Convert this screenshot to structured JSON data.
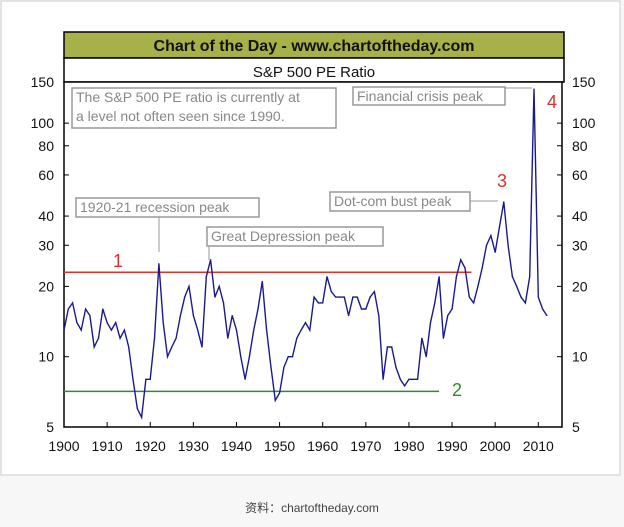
{
  "chart_data": {
    "type": "line",
    "banner": "Chart of the Day - www.chartoftheday.com",
    "title": "S&P 500 PE Ratio",
    "xlabel": "",
    "ylabel": "",
    "yscale": "log",
    "ylim": [
      5,
      150
    ],
    "xlim": [
      1900,
      2015.5
    ],
    "y_ticks": [
      5,
      10,
      20,
      30,
      40,
      60,
      80,
      100,
      150
    ],
    "x_ticks": [
      1900,
      1910,
      1920,
      1930,
      1940,
      1950,
      1960,
      1970,
      1980,
      1990,
      2000,
      2010
    ],
    "grid": false,
    "series": [
      {
        "name": "S&P 500 PE Ratio",
        "color": "#1a1a8c",
        "x": [
          1900,
          1901,
          1902,
          1903,
          1904,
          1905,
          1906,
          1907,
          1908,
          1909,
          1910,
          1911,
          1912,
          1913,
          1914,
          1915,
          1916,
          1917,
          1918,
          1919,
          1920,
          1921,
          1922,
          1923,
          1924,
          1925,
          1926,
          1927,
          1928,
          1929,
          1930,
          1931,
          1932,
          1933,
          1934,
          1935,
          1936,
          1937,
          1938,
          1939,
          1940,
          1941,
          1942,
          1943,
          1944,
          1945,
          1946,
          1947,
          1948,
          1949,
          1950,
          1951,
          1952,
          1953,
          1954,
          1955,
          1956,
          1957,
          1958,
          1959,
          1960,
          1961,
          1962,
          1963,
          1964,
          1965,
          1966,
          1967,
          1968,
          1969,
          1970,
          1971,
          1972,
          1973,
          1974,
          1975,
          1976,
          1977,
          1978,
          1979,
          1980,
          1981,
          1982,
          1983,
          1984,
          1985,
          1986,
          1987,
          1988,
          1989,
          1990,
          1991,
          1992,
          1993,
          1994,
          1995,
          1996,
          1997,
          1998,
          1999,
          2000,
          2001,
          2002,
          2003,
          2004,
          2005,
          2006,
          2007,
          2008,
          2009,
          2010,
          2011,
          2012
        ],
        "values": [
          13,
          16,
          17,
          14,
          13,
          16,
          15,
          11,
          12,
          16,
          14,
          13,
          14,
          12,
          13,
          11,
          8,
          6,
          5.5,
          8,
          8,
          12,
          25,
          14,
          10,
          11,
          12,
          15,
          18,
          20,
          15,
          13,
          11,
          22,
          26,
          18,
          20,
          17,
          12,
          15,
          13,
          10,
          8,
          10,
          13,
          16,
          21,
          13,
          9,
          6.5,
          7,
          9,
          10,
          10,
          12,
          13,
          14,
          13,
          18,
          17,
          17,
          22,
          19,
          18,
          18,
          18,
          15,
          18,
          18,
          16,
          16,
          18,
          19,
          15,
          8,
          11,
          11,
          9,
          8,
          7.5,
          8,
          8,
          8,
          12,
          10,
          14,
          17,
          22,
          12,
          15,
          16,
          22,
          26,
          24,
          18,
          17,
          20,
          24,
          30,
          33,
          28,
          36,
          46,
          30,
          22,
          20,
          18,
          17,
          22,
          140,
          18,
          16,
          15
        ]
      }
    ],
    "reference_lines": [
      {
        "label": "1",
        "value": 23,
        "color": "#e0302a"
      },
      {
        "label": "2",
        "value": 7.1,
        "color": "#2e8b2e"
      }
    ],
    "annotations": {
      "info": [
        "The S&P 500 PE ratio is currently at",
        "a level not often seen since 1990."
      ],
      "financial_crisis": "Financial crisis peak",
      "dotcom": "Dot-com bust peak",
      "recession": "1920-21 recession peak",
      "depression": "Great Depression peak",
      "label3": "3",
      "label4": "4"
    },
    "source": "资料：chartoftheday.com"
  }
}
